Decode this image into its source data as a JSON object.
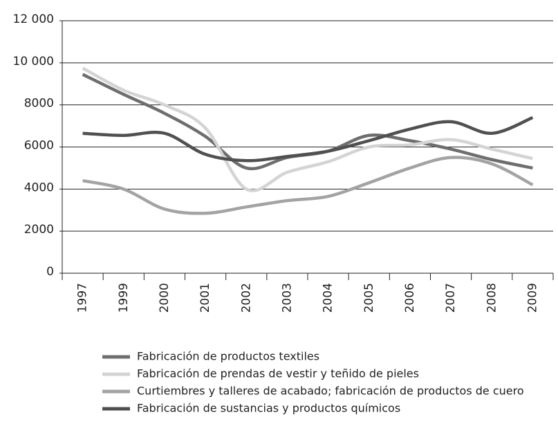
{
  "chart_data": {
    "type": "line",
    "categories": [
      "1997",
      "1999",
      "2000",
      "2001",
      "2002",
      "2003",
      "2004",
      "2005",
      "2006",
      "2007",
      "2008",
      "2009"
    ],
    "series": [
      {
        "name": "Fabricación de productos textiles",
        "color": "#6e6e6e",
        "values": [
          9450,
          8500,
          7600,
          6500,
          5000,
          5500,
          5800,
          6550,
          6300,
          5900,
          5400,
          5000
        ]
      },
      {
        "name": "Fabricación de prendas de vestir y teñido de pieles",
        "color": "#d4d4d4",
        "values": [
          9750,
          8700,
          8000,
          6900,
          4000,
          4800,
          5300,
          6000,
          6100,
          6350,
          5900,
          5450
        ]
      },
      {
        "name": "Curtiembres y talleres de acabado; fabricación de productos de cuero",
        "color": "#a3a3a3",
        "values": [
          4400,
          4000,
          3050,
          2850,
          3150,
          3450,
          3650,
          4300,
          5000,
          5500,
          5200,
          4200
        ]
      },
      {
        "name": "Fabricación de sustancias y productos químicos",
        "color": "#505050",
        "values": [
          6650,
          6550,
          6650,
          5650,
          5350,
          5550,
          5800,
          6300,
          6850,
          7200,
          6650,
          7400
        ]
      }
    ],
    "ylim": [
      0,
      12000
    ],
    "yticks": [
      0,
      2000,
      4000,
      6000,
      8000,
      {
        "value": 10000,
        "label": "10 000"
      },
      {
        "value": 12000,
        "label": "12 000"
      }
    ],
    "grid": true
  }
}
